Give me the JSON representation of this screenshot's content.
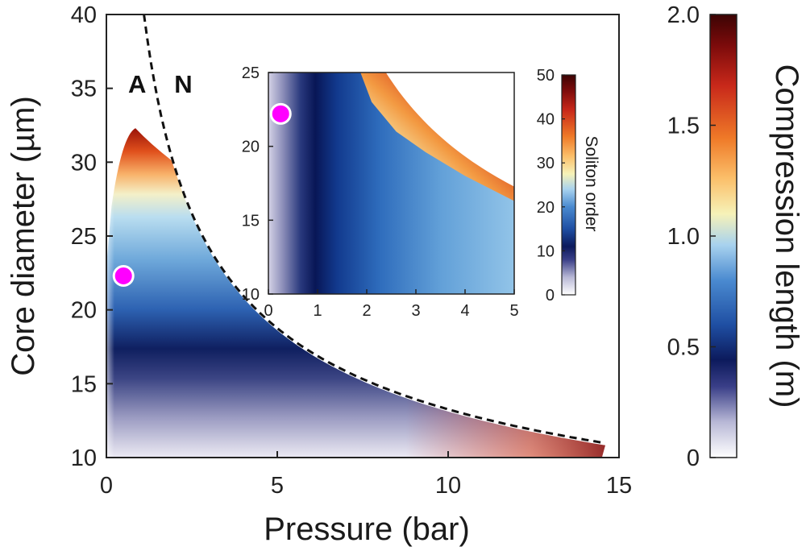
{
  "chart_data": [
    {
      "type": "heatmap",
      "xlabel": "Pressure (bar)",
      "ylabel": "Core diameter (µm)",
      "xlim": [
        0,
        15
      ],
      "ylim": [
        10,
        40
      ],
      "x_ticks": [
        "0",
        "5",
        "10",
        "15"
      ],
      "y_ticks": [
        "10",
        "15",
        "20",
        "25",
        "30",
        "35",
        "40"
      ],
      "colorbar": {
        "label": "Compression length (m)",
        "range": [
          0,
          2.0
        ],
        "ticks": [
          "0",
          "0.5",
          "1.0",
          "1.5",
          "2.0"
        ]
      },
      "region_labels": [
        "A",
        "N"
      ],
      "boundary_curve": [
        [
          1.1,
          40
        ],
        [
          1.5,
          35
        ],
        [
          2.0,
          30
        ],
        [
          3.0,
          25
        ],
        [
          4.0,
          22
        ],
        [
          5.0,
          19.5
        ],
        [
          7.0,
          16.5
        ],
        [
          10.0,
          13.5
        ],
        [
          12.5,
          11.5
        ],
        [
          14.5,
          10
        ]
      ],
      "marker": {
        "x": 0.5,
        "y": 22.3,
        "color": "#ff00ff"
      },
      "grid": false
    },
    {
      "type": "heatmap",
      "xlabel": "",
      "ylabel": "",
      "xlim": [
        0,
        5
      ],
      "ylim": [
        10,
        25
      ],
      "x_ticks": [
        "0",
        "1",
        "2",
        "3",
        "4",
        "5"
      ],
      "y_ticks": [
        "10",
        "15",
        "20",
        "25"
      ],
      "colorbar": {
        "label": "Soliton order",
        "range": [
          0,
          50
        ],
        "ticks": [
          "0",
          "10",
          "20",
          "30",
          "40",
          "50"
        ]
      },
      "marker": {
        "x": 0.25,
        "y": 22.2,
        "color": "#ff00ff"
      },
      "grid": false
    }
  ]
}
